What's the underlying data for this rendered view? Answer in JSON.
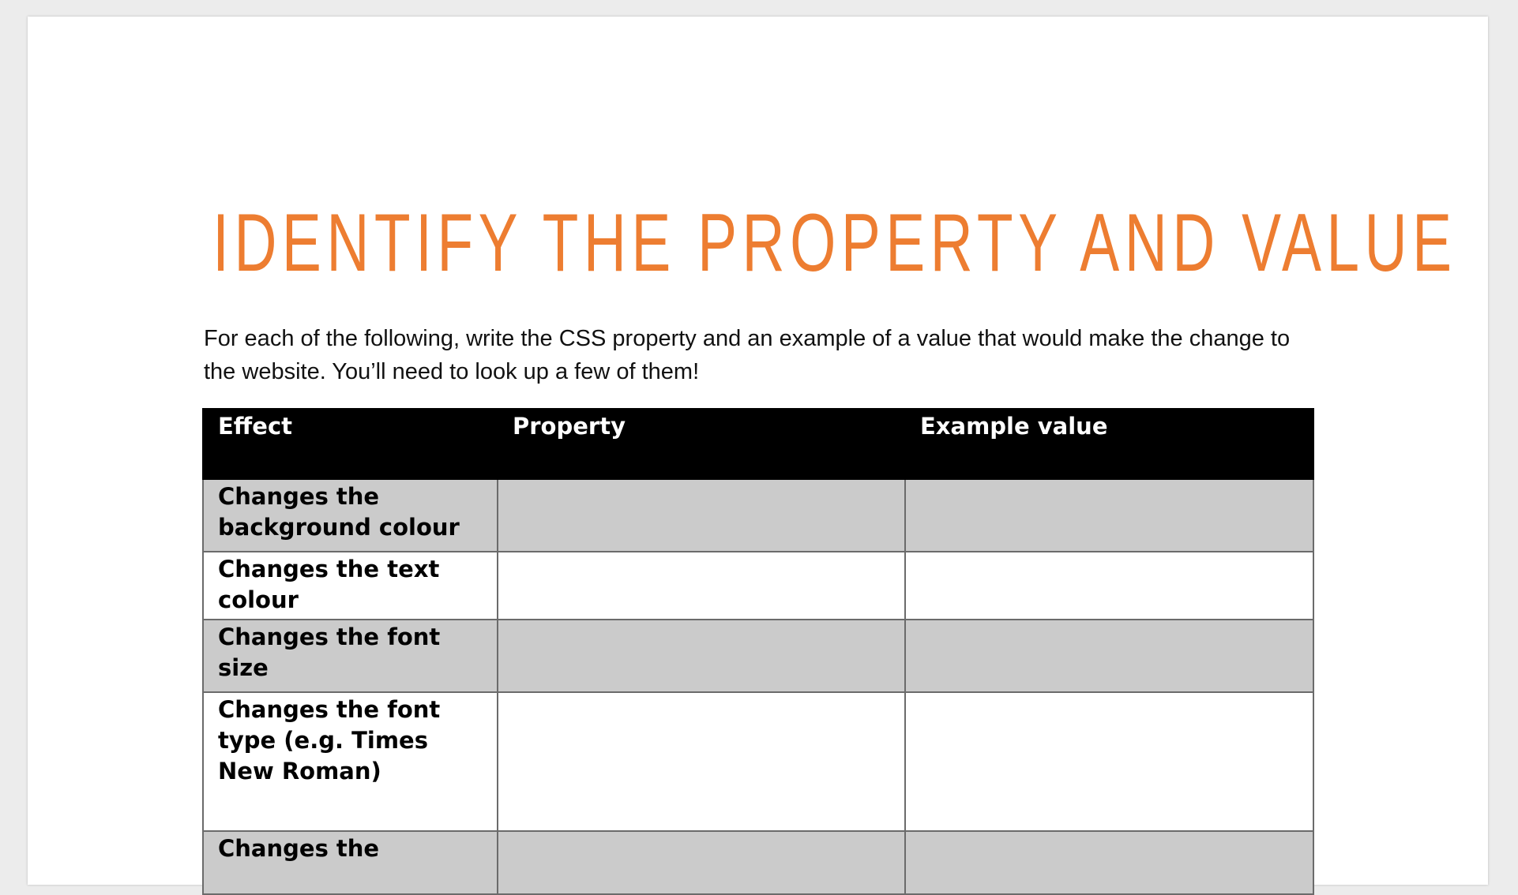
{
  "title": "IDENTIFY THE PROPERTY AND VALUE",
  "intro": "For each of the following, write the CSS property and an example of a value that would make the change to the website. You’ll need to look up a few of them!",
  "table": {
    "headers": [
      "Effect",
      "Property",
      "Example value"
    ],
    "rows": [
      {
        "effect": "Changes the background colour",
        "property": "",
        "value": ""
      },
      {
        "effect": "Changes the text colour",
        "property": "",
        "value": ""
      },
      {
        "effect": "Changes the font size",
        "property": "",
        "value": ""
      },
      {
        "effect": "Changes the font type (e.g. Times New Roman)",
        "property": "",
        "value": ""
      },
      {
        "effect": "Changes the",
        "property": "",
        "value": ""
      }
    ]
  }
}
